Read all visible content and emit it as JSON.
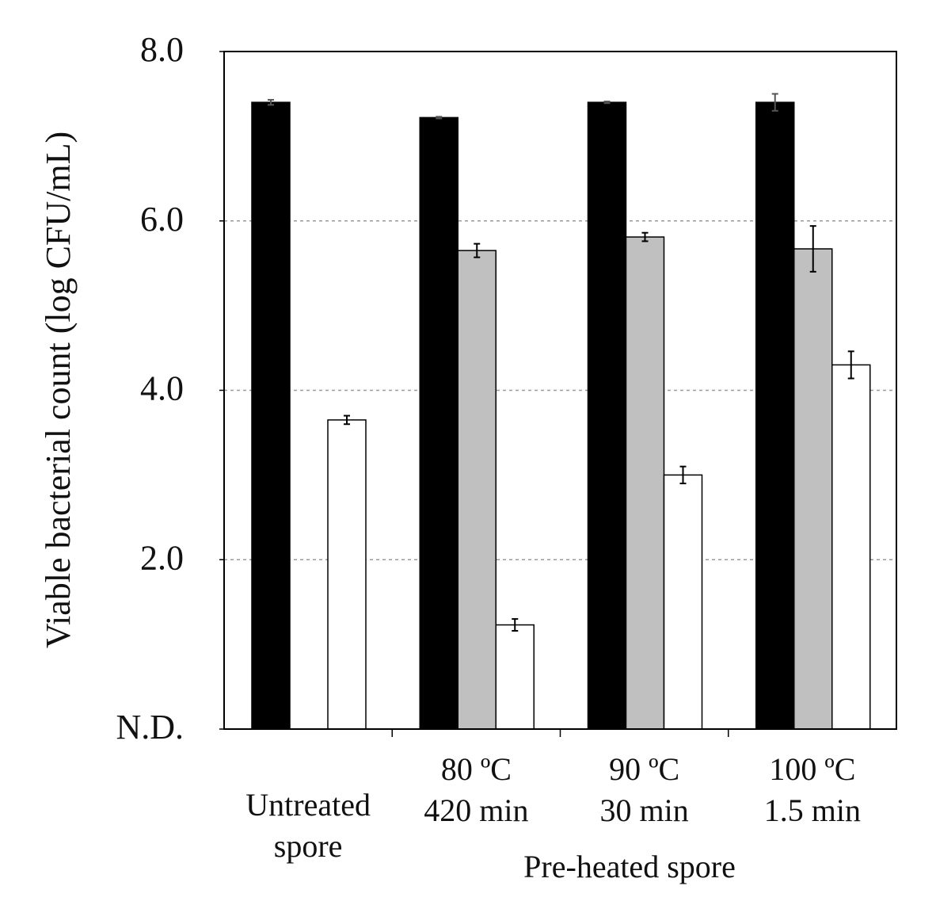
{
  "chart_data": {
    "type": "bar",
    "y_label": "Viable bacterial count (log CFU/mL)",
    "group_label": "Pre-heated spore",
    "categories": [
      [
        "Untreated",
        "spore"
      ],
      [
        "80 ºC",
        "420 min"
      ],
      [
        "90 ºC",
        "30 min"
      ],
      [
        "100 ºC",
        "1.5 min"
      ]
    ],
    "series": [
      {
        "color": "#000000",
        "values": [
          7.4,
          7.22,
          7.4,
          7.4
        ],
        "errors": [
          0.03,
          0.01,
          0.01,
          0.1
        ]
      },
      {
        "color": "#c0c0c0",
        "values": [
          null,
          5.65,
          5.81,
          5.67
        ],
        "errors": [
          null,
          0.08,
          0.05,
          0.27
        ]
      },
      {
        "color": "#ffffff",
        "values": [
          3.65,
          1.23,
          3.0,
          4.3
        ],
        "errors": [
          0.05,
          0.07,
          0.1,
          0.16
        ]
      }
    ],
    "ylim": [
      0,
      8
    ],
    "yticks": [
      {
        "value": 0,
        "label": "N.D."
      },
      {
        "value": 2,
        "label": "2.0"
      },
      {
        "value": 4,
        "label": "4.0"
      },
      {
        "value": 6,
        "label": "6.0"
      },
      {
        "value": 8,
        "label": "8.0"
      }
    ],
    "grid": true
  }
}
